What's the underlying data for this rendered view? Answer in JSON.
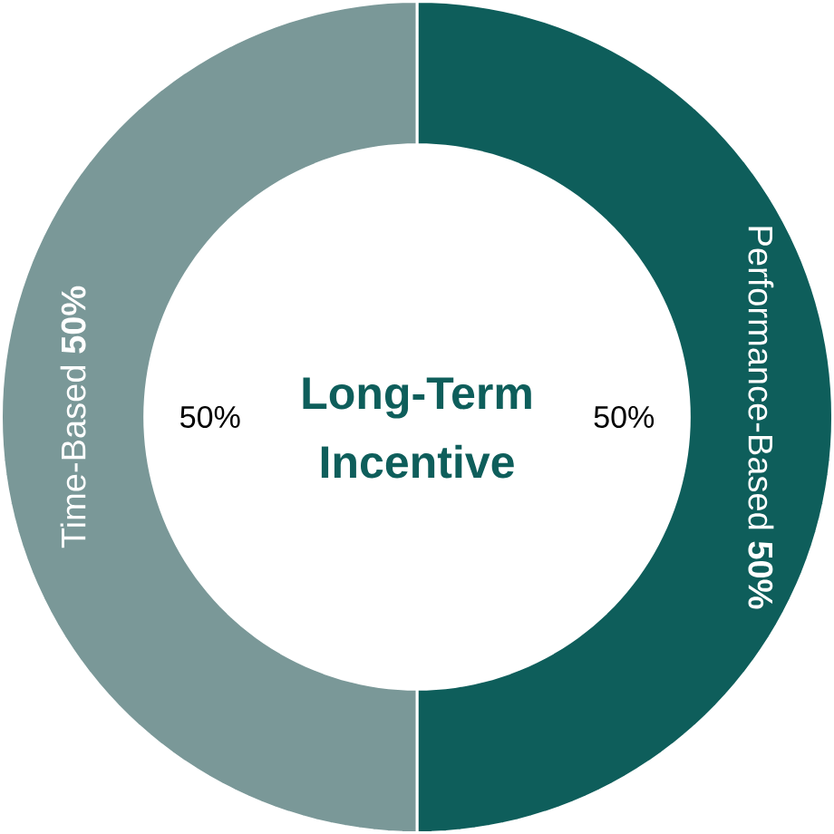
{
  "chart_data": {
    "type": "donut",
    "title": "Long-Term Incentive",
    "categories": [
      "Performance-Based **50%**",
      "Time-Based **50%**"
    ],
    "values": [
      50,
      50
    ],
    "colors": [
      "#0e5e5b",
      "#7a9898"
    ],
    "value_labels": [
      "50%",
      "50%"
    ]
  }
}
